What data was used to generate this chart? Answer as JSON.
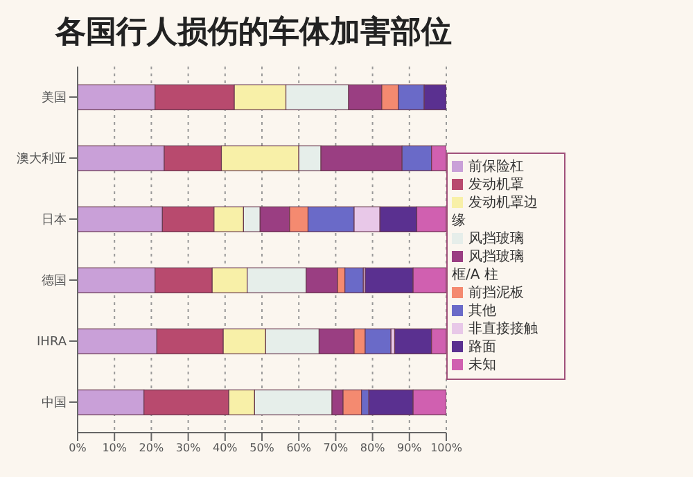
{
  "chart_data": {
    "type": "bar",
    "orientation": "horizontal",
    "stacked": true,
    "title": "各国行人损伤的车体加害部位",
    "categories": [
      "美国",
      "澳大利亚",
      "日本",
      "德国",
      "IHRA",
      "中国"
    ],
    "series": [
      {
        "name": "前保险杠",
        "color": "#c9a0d8",
        "values": [
          21,
          23.5,
          23,
          21,
          21.5,
          18
        ]
      },
      {
        "name": "发动机罩",
        "color": "#b84a6e",
        "values": [
          21.5,
          15.5,
          14,
          15.5,
          18,
          23
        ]
      },
      {
        "name": "发动机罩边缘",
        "color": "#f8f0a8",
        "values": [
          14,
          21,
          8,
          9.5,
          11.5,
          7
        ]
      },
      {
        "name": "风挡玻璃",
        "color": "#e6eeea",
        "values": [
          17,
          6,
          4.5,
          16,
          14.5,
          21
        ]
      },
      {
        "name": "风挡玻璃框/A 柱",
        "color": "#9a3e82",
        "values": [
          9,
          22,
          8,
          8.5,
          9.5,
          3
        ]
      },
      {
        "name": "前挡泥板",
        "color": "#f48a70",
        "values": [
          4.5,
          0,
          5,
          2,
          3,
          5
        ]
      },
      {
        "name": "其他",
        "color": "#6a6ac8",
        "values": [
          7,
          8,
          12.5,
          5,
          7,
          2
        ]
      },
      {
        "name": "非直接接触",
        "color": "#e8c8e8",
        "values": [
          0,
          0,
          7,
          0.5,
          1,
          0
        ]
      },
      {
        "name": "路面",
        "color": "#5a3090",
        "values": [
          6,
          0,
          10,
          13,
          10,
          12
        ]
      },
      {
        "name": "未知",
        "color": "#d060b0",
        "values": [
          0,
          4,
          8,
          9,
          4,
          9
        ]
      }
    ],
    "xlim": [
      0,
      100
    ],
    "xticks": [
      {
        "value": 0,
        "label": "0%"
      },
      {
        "value": 10,
        "label": "10%"
      },
      {
        "value": 20,
        "label": "20%"
      },
      {
        "value": 30,
        "label": "30%"
      },
      {
        "value": 40,
        "label": "40%"
      },
      {
        "value": 50,
        "label": "50%"
      },
      {
        "value": 60,
        "label": "60%"
      },
      {
        "value": 70,
        "label": "70%"
      },
      {
        "value": 80,
        "label": "80%"
      },
      {
        "value": 90,
        "label": "90%"
      },
      {
        "value": 100,
        "label": "100%"
      }
    ],
    "grid": "x",
    "legend": "right"
  }
}
